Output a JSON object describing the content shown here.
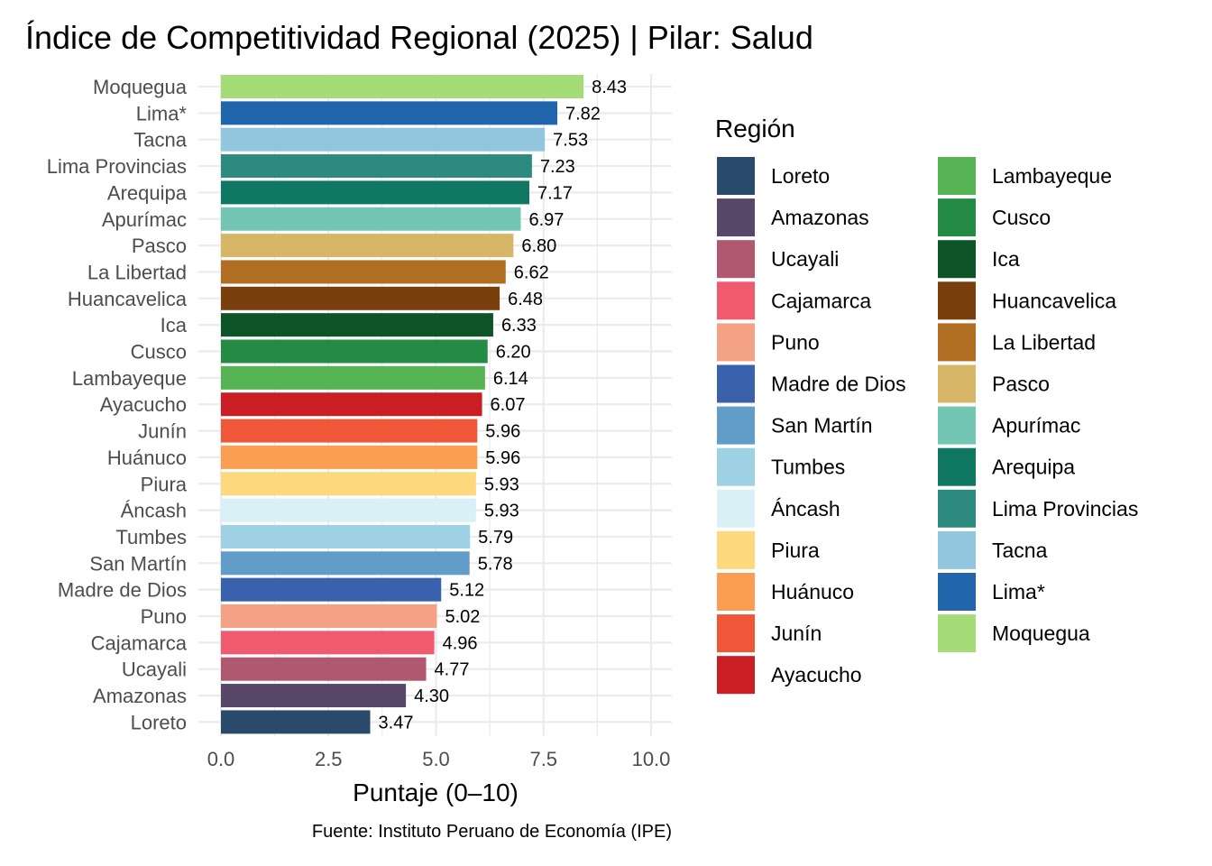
{
  "chart_data": {
    "type": "bar",
    "orientation": "horizontal",
    "title": "Índice de Competitividad Regional (2025) | Pilar: Salud",
    "xlabel": "Puntaje (0–10)",
    "ylabel": "",
    "caption": "Fuente: Instituto Peruano de Economía (IPE)",
    "xlim": [
      0,
      10
    ],
    "xticks": [
      0.0,
      2.5,
      5.0,
      7.5,
      10.0
    ],
    "xtick_labels": [
      "0.0",
      "2.5",
      "5.0",
      "7.5",
      "10.0"
    ],
    "grid": true,
    "legend": {
      "title": "Región",
      "placement": "right",
      "columns": 2
    },
    "categories": [
      "Moquegua",
      "Lima*",
      "Tacna",
      "Lima Provincias",
      "Arequipa",
      "Apurímac",
      "Pasco",
      "La Libertad",
      "Huancavelica",
      "Ica",
      "Cusco",
      "Lambayeque",
      "Ayacucho",
      "Junín",
      "Huánuco",
      "Piura",
      "Áncash",
      "Tumbes",
      "San Martín",
      "Madre de Dios",
      "Puno",
      "Cajamarca",
      "Ucayali",
      "Amazonas",
      "Loreto"
    ],
    "values": [
      8.43,
      7.82,
      7.53,
      7.23,
      7.17,
      6.97,
      6.8,
      6.62,
      6.48,
      6.33,
      6.2,
      6.14,
      6.07,
      5.96,
      5.96,
      5.93,
      5.93,
      5.79,
      5.78,
      5.12,
      5.02,
      4.96,
      4.77,
      4.3,
      3.47
    ],
    "value_labels": [
      "8.43",
      "7.82",
      "7.53",
      "7.23",
      "7.17",
      "6.97",
      "6.80",
      "6.62",
      "6.48",
      "6.33",
      "6.20",
      "6.14",
      "6.07",
      "5.96",
      "5.96",
      "5.93",
      "5.93",
      "5.79",
      "5.78",
      "5.12",
      "5.02",
      "4.96",
      "4.77",
      "4.30",
      "3.47"
    ],
    "colors": [
      "#a6dc78",
      "#2166ac",
      "#92c5de",
      "#2d8a7e",
      "#0f7762",
      "#73c6b4",
      "#d8b668",
      "#b06e22",
      "#793f0c",
      "#0d5429",
      "#238b43",
      "#57b454",
      "#cb1e24",
      "#f05738",
      "#fa9f51",
      "#fdd87c",
      "#d9f0f6",
      "#9ed1e4",
      "#629cc8",
      "#3a61ab",
      "#f4a286",
      "#ef5a6e",
      "#b15871",
      "#594769",
      "#294a6b"
    ],
    "legend_order": [
      "Loreto",
      "Amazonas",
      "Ucayali",
      "Cajamarca",
      "Puno",
      "Madre de Dios",
      "San Martín",
      "Tumbes",
      "Áncash",
      "Piura",
      "Huánuco",
      "Junín",
      "Ayacucho",
      "Lambayeque",
      "Cusco",
      "Ica",
      "Huancavelica",
      "La Libertad",
      "Pasco",
      "Apurímac",
      "Arequipa",
      "Lima Provincias",
      "Tacna",
      "Lima*",
      "Moquegua"
    ]
  }
}
